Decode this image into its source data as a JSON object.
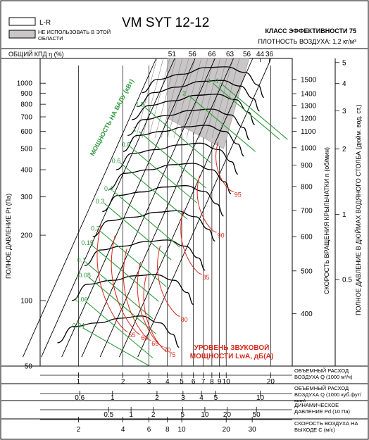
{
  "chart_data": {
    "type": "line",
    "title": "VM SYT 12-12",
    "legend": {
      "lr": "L-R",
      "not_used": "НЕ ИСПОЛЬЗОВАТЬ В ЭТОЙ ОБЛАСТИ",
      "placement": "top-left"
    },
    "efficiency_class": "КЛАСС ЭФФЕКТИВНОСТИ 75",
    "air_density": "ПЛОТНОСТЬ ВОЗДУХА: 1,2 кг/м³",
    "efficiency_label": "ОБЩИЙ КПД η (%)",
    "efficiency_ticks": [
      {
        "label": "51",
        "q": 4.3
      },
      {
        "label": "56",
        "q": 5.9
      },
      {
        "label": "66",
        "q": 8.0
      },
      {
        "label": "63",
        "q": 10.6
      },
      {
        "label": "56",
        "q": 13.8
      },
      {
        "label": "44",
        "q": 17.0
      },
      {
        "label": "36",
        "q": 19.6
      }
    ],
    "ylabel": "ПОЛНОЕ ДАВЛЕНИЕ Pt (Па)",
    "ylim": [
      50,
      1300
    ],
    "yscale": "log",
    "y_ticks": [
      {
        "v": 1000,
        "label": "1000"
      },
      {
        "v": 900,
        "label": "900"
      },
      {
        "v": 800,
        "label": "800"
      },
      {
        "v": 700,
        "label": "700"
      },
      {
        "v": 600,
        "label": "600"
      },
      {
        "v": 500,
        "label": "500"
      },
      {
        "v": 400,
        "label": "400"
      },
      {
        "v": 300,
        "label": "300"
      },
      {
        "v": 200,
        "label": "200"
      },
      {
        "v": 100,
        "label": "100"
      },
      {
        "v": 50,
        "label": "50"
      }
    ],
    "x_axes": [
      {
        "label": "ОБЪЕМНЫЙ РАСХОД ВОЗДУХА Q (1000 м³/ч)",
        "ticks": [
          {
            "q": 1,
            "label": "1"
          },
          {
            "q": 2,
            "label": "2"
          },
          {
            "q": 3,
            "label": "3"
          },
          {
            "q": 4,
            "label": "4"
          },
          {
            "q": 5,
            "label": "5"
          },
          {
            "q": 6,
            "label": "6"
          },
          {
            "q": 7,
            "label": "7"
          },
          {
            "q": 8,
            "label": "8"
          },
          {
            "q": 9,
            "label": "9"
          },
          {
            "q": 10,
            "label": "10"
          },
          {
            "q": 20,
            "label": "20"
          }
        ]
      },
      {
        "label": "ОБЪЕМНЫЙ РАСХОД ВОЗДУХА Q (1000 куб.фут/мин)",
        "ticks": [
          {
            "q": 1.02,
            "label": "0.6"
          },
          {
            "q": 1.7,
            "label": "1"
          },
          {
            "q": 3.4,
            "label": "2"
          },
          {
            "q": 5.1,
            "label": "3"
          },
          {
            "q": 6.8,
            "label": "4"
          },
          {
            "q": 8.5,
            "label": "5"
          },
          {
            "q": 17.0,
            "label": "10"
          }
        ]
      },
      {
        "label": "ДИНАМИЧЕСКОЕ ДАВЛЕНИЕ Pd (10 Па)",
        "ticks": [
          {
            "q": 1.6,
            "label": "0.5"
          },
          {
            "q": 2.27,
            "label": "1"
          },
          {
            "q": 3.21,
            "label": "2"
          },
          {
            "q": 5.07,
            "label": "5"
          },
          {
            "q": 7.17,
            "label": "10"
          },
          {
            "q": 10.14,
            "label": "20"
          },
          {
            "q": 16.03,
            "label": "50"
          }
        ]
      },
      {
        "label": "СКОРОСТЬ ВОЗДУХА НА ВЫХОДЕ C (м/с)",
        "ticks": [
          {
            "q": 1.0,
            "label": "2"
          },
          {
            "q": 2.0,
            "label": "4"
          },
          {
            "q": 3.0,
            "label": "6"
          },
          {
            "q": 4.0,
            "label": "8"
          },
          {
            "q": 5.0,
            "label": "10"
          },
          {
            "q": 10.0,
            "label": "20"
          },
          {
            "q": 15.0,
            "label": "30"
          }
        ]
      }
    ],
    "rpm_axis": {
      "label": "СКОРОСТЬ ВРАЩЕНИЯ КРЫЛЬЧАТКИ n (об/мин)",
      "ticks": [
        {
          "pt": 1040,
          "label": "1500"
        },
        {
          "pt": 895,
          "label": "1400"
        },
        {
          "pt": 790,
          "label": "1300"
        },
        {
          "pt": 690,
          "label": "1200"
        },
        {
          "pt": 600,
          "label": "1100"
        },
        {
          "pt": 505,
          "label": "1000"
        },
        {
          "pt": 420,
          "label": "900"
        },
        {
          "pt": 335,
          "label": "800"
        },
        {
          "pt": 260,
          "label": "700"
        },
        {
          "pt": 197,
          "label": "600"
        },
        {
          "pt": 137,
          "label": "500"
        },
        {
          "pt": 87,
          "label": "400"
        }
      ]
    },
    "inch_axis": {
      "label": "ПОЛНОЕ ДАВЛЕНИЕ В ДЮЙМАХ ВОДЯНОГО СТОЛБА (дюйм. вод. ст.)",
      "ticks": [
        {
          "pt": 1245,
          "label": "5"
        },
        {
          "pt": 996,
          "label": "4"
        },
        {
          "pt": 747,
          "label": "3"
        },
        {
          "pt": 498,
          "label": "2"
        },
        {
          "pt": 249,
          "label": "1"
        },
        {
          "pt": 125,
          "label": "0.5"
        }
      ]
    },
    "power_label": "МОЩНОСТЬ НА ВАЛУ (кВт)",
    "power_labels": [
      {
        "label": "4",
        "q": 8.6,
        "pt": 1000
      },
      {
        "label": "3",
        "q": 7.6,
        "pt": 1000
      },
      {
        "label": "2",
        "q": 5.2,
        "pt": 880
      },
      {
        "label": "1.5",
        "q": 2.6,
        "pt": 780
      },
      {
        "label": "1",
        "q": 2.4,
        "pt": 600
      },
      {
        "label": "0.8",
        "q": 2.1,
        "pt": 510
      },
      {
        "label": "0.6",
        "q": 1.8,
        "pt": 430
      },
      {
        "label": "0.4",
        "q": 1.6,
        "pt": 320
      },
      {
        "label": "0.3",
        "q": 1.4,
        "pt": 280
      },
      {
        "label": "0.2",
        "q": 1.3,
        "pt": 210
      },
      {
        "label": "0.15",
        "q": 1.15,
        "pt": 180
      },
      {
        "label": "0.1",
        "q": 1.05,
        "pt": 150
      },
      {
        "label": "0.08",
        "q": 1.1,
        "pt": 128
      },
      {
        "label": "0.06",
        "q": 1.05,
        "pt": 99
      },
      {
        "label": "0.04",
        "q": 1.0,
        "pt": 75
      }
    ],
    "sound_label": "УРОВЕНЬ ЗВУКОВОЙ МОЩНОСТИ LwA, дБ(А)",
    "sound_labels": [
      {
        "label": "95",
        "q": 12.0,
        "pt": 300
      },
      {
        "label": "90",
        "q": 9.2,
        "pt": 195
      },
      {
        "label": "85",
        "q": 7.3,
        "pt": 125
      },
      {
        "label": "80",
        "q": 5.2,
        "pt": 80
      },
      {
        "label": "75",
        "q": 4.3,
        "pt": 55
      },
      {
        "label": "70",
        "q": 4.0,
        "pt": 58
      },
      {
        "label": "65",
        "q": 3.3,
        "pt": 62
      },
      {
        "label": "60",
        "q": 2.8,
        "pt": 66
      },
      {
        "label": "55",
        "q": 2.3,
        "pt": 68
      }
    ],
    "rpm_lines": [
      {
        "rpm": 1500,
        "pts": [
          [
            2.7,
            905
          ],
          [
            3.4,
            1040
          ],
          [
            5,
            1100
          ],
          [
            7.3,
            1180
          ],
          [
            10,
            1190
          ],
          [
            13.5,
            1120
          ],
          [
            16.5,
            980
          ],
          [
            18,
            860
          ]
        ]
      },
      {
        "rpm": 1400,
        "pts": [
          [
            2.5,
            780
          ],
          [
            3.2,
            905
          ],
          [
            4.7,
            960
          ],
          [
            6.8,
            1020
          ],
          [
            9.3,
            1030
          ],
          [
            12.5,
            970
          ],
          [
            15.3,
            850
          ],
          [
            16.8,
            745
          ]
        ]
      },
      {
        "rpm": 1300,
        "pts": [
          [
            2.3,
            680
          ],
          [
            3.0,
            790
          ],
          [
            4.4,
            830
          ],
          [
            6.3,
            880
          ],
          [
            8.6,
            890
          ],
          [
            11.6,
            840
          ],
          [
            14.2,
            735
          ],
          [
            15.6,
            645
          ]
        ]
      },
      {
        "rpm": 1200,
        "pts": [
          [
            2.15,
            575
          ],
          [
            2.75,
            680
          ],
          [
            4.0,
            710
          ],
          [
            5.8,
            750
          ],
          [
            7.9,
            760
          ],
          [
            10.7,
            715
          ],
          [
            13.1,
            625
          ],
          [
            14.4,
            550
          ]
        ]
      },
      {
        "rpm": 1100,
        "pts": [
          [
            2.0,
            485
          ],
          [
            2.5,
            575
          ],
          [
            3.7,
            600
          ],
          [
            5.3,
            630
          ],
          [
            7.3,
            640
          ],
          [
            9.8,
            600
          ],
          [
            12.0,
            525
          ],
          [
            13.2,
            462
          ]
        ]
      },
      {
        "rpm": 1000,
        "pts": [
          [
            1.8,
            400
          ],
          [
            2.3,
            475
          ],
          [
            3.35,
            495
          ],
          [
            4.8,
            520
          ],
          [
            6.6,
            530
          ],
          [
            8.9,
            495
          ],
          [
            10.9,
            435
          ],
          [
            12.0,
            382
          ]
        ]
      },
      {
        "rpm": 900,
        "pts": [
          [
            1.6,
            325
          ],
          [
            2.05,
            385
          ],
          [
            3.0,
            400
          ],
          [
            4.35,
            422
          ],
          [
            5.9,
            428
          ],
          [
            8.0,
            400
          ],
          [
            9.8,
            352
          ],
          [
            10.8,
            310
          ]
        ]
      },
      {
        "rpm": 800,
        "pts": [
          [
            1.45,
            257
          ],
          [
            1.85,
            305
          ],
          [
            2.7,
            316
          ],
          [
            3.85,
            333
          ],
          [
            5.3,
            338
          ],
          [
            7.1,
            318
          ],
          [
            8.7,
            278
          ],
          [
            9.6,
            245
          ]
        ]
      },
      {
        "rpm": 700,
        "pts": [
          [
            1.25,
            197
          ],
          [
            1.6,
            233
          ],
          [
            2.35,
            242
          ],
          [
            3.4,
            255
          ],
          [
            4.6,
            259
          ],
          [
            6.2,
            243
          ],
          [
            7.6,
            213
          ],
          [
            8.4,
            188
          ]
        ]
      },
      {
        "rpm": 600,
        "pts": [
          [
            1.1,
            145
          ],
          [
            1.4,
            171
          ],
          [
            2.0,
            178
          ],
          [
            2.9,
            187
          ],
          [
            4.0,
            190
          ],
          [
            5.3,
            178
          ],
          [
            6.5,
            157
          ],
          [
            7.2,
            138
          ]
        ]
      },
      {
        "rpm": 500,
        "pts": [
          [
            0.9,
            100
          ],
          [
            1.15,
            119
          ],
          [
            1.7,
            124
          ],
          [
            2.4,
            130
          ],
          [
            3.3,
            132
          ],
          [
            4.45,
            124
          ],
          [
            5.45,
            109
          ],
          [
            6.0,
            96
          ]
        ]
      },
      {
        "rpm": 400,
        "pts": [
          [
            0.72,
            64
          ],
          [
            0.92,
            76
          ],
          [
            1.35,
            79
          ],
          [
            1.95,
            83
          ],
          [
            2.65,
            85
          ],
          [
            3.55,
            79
          ],
          [
            4.35,
            70
          ],
          [
            4.8,
            61
          ]
        ]
      }
    ]
  }
}
